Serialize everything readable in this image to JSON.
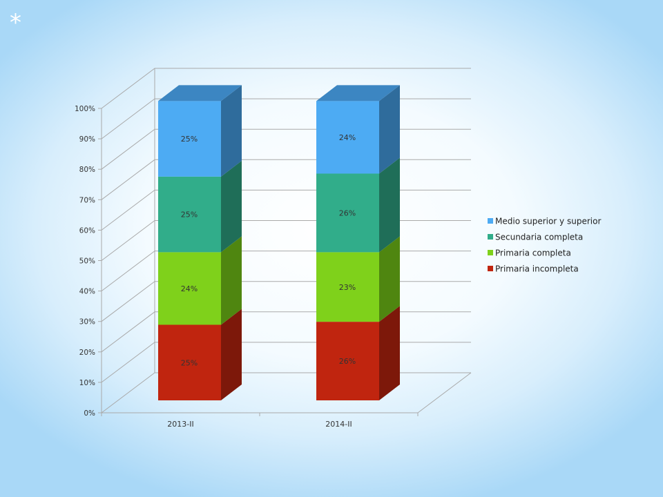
{
  "decoration": {
    "star_glyph": "*"
  },
  "chart_data": {
    "type": "bar",
    "stacked": true,
    "three_d": true,
    "categories": [
      "2013-II",
      "2014-II"
    ],
    "series": [
      {
        "name": "Primaria incompleta",
        "values": [
          25,
          26
        ],
        "labels": [
          "25%",
          "26%"
        ],
        "color": "#c0250f",
        "side_color": "#7d180a"
      },
      {
        "name": "Primaria completa",
        "values": [
          24,
          23
        ],
        "labels": [
          "24%",
          "23%"
        ],
        "color": "#7fd11b",
        "side_color": "#4f8610"
      },
      {
        "name": "Secundaria completa",
        "values": [
          25,
          26
        ],
        "labels": [
          "25%",
          "26%"
        ],
        "color": "#31ad8a",
        "side_color": "#1f6e58"
      },
      {
        "name": "Medio superior y superior",
        "values": [
          25,
          24
        ],
        "labels": [
          "25%",
          "24%"
        ],
        "color": "#4dabf3",
        "side_color": "#2f6c9c",
        "top_color": "#3c86c2"
      }
    ],
    "y_ticks": [
      "0%",
      "10%",
      "20%",
      "30%",
      "40%",
      "50%",
      "60%",
      "70%",
      "80%",
      "90%",
      "100%"
    ],
    "ylim": [
      0,
      100
    ],
    "grid": true,
    "legend_position": "right"
  }
}
